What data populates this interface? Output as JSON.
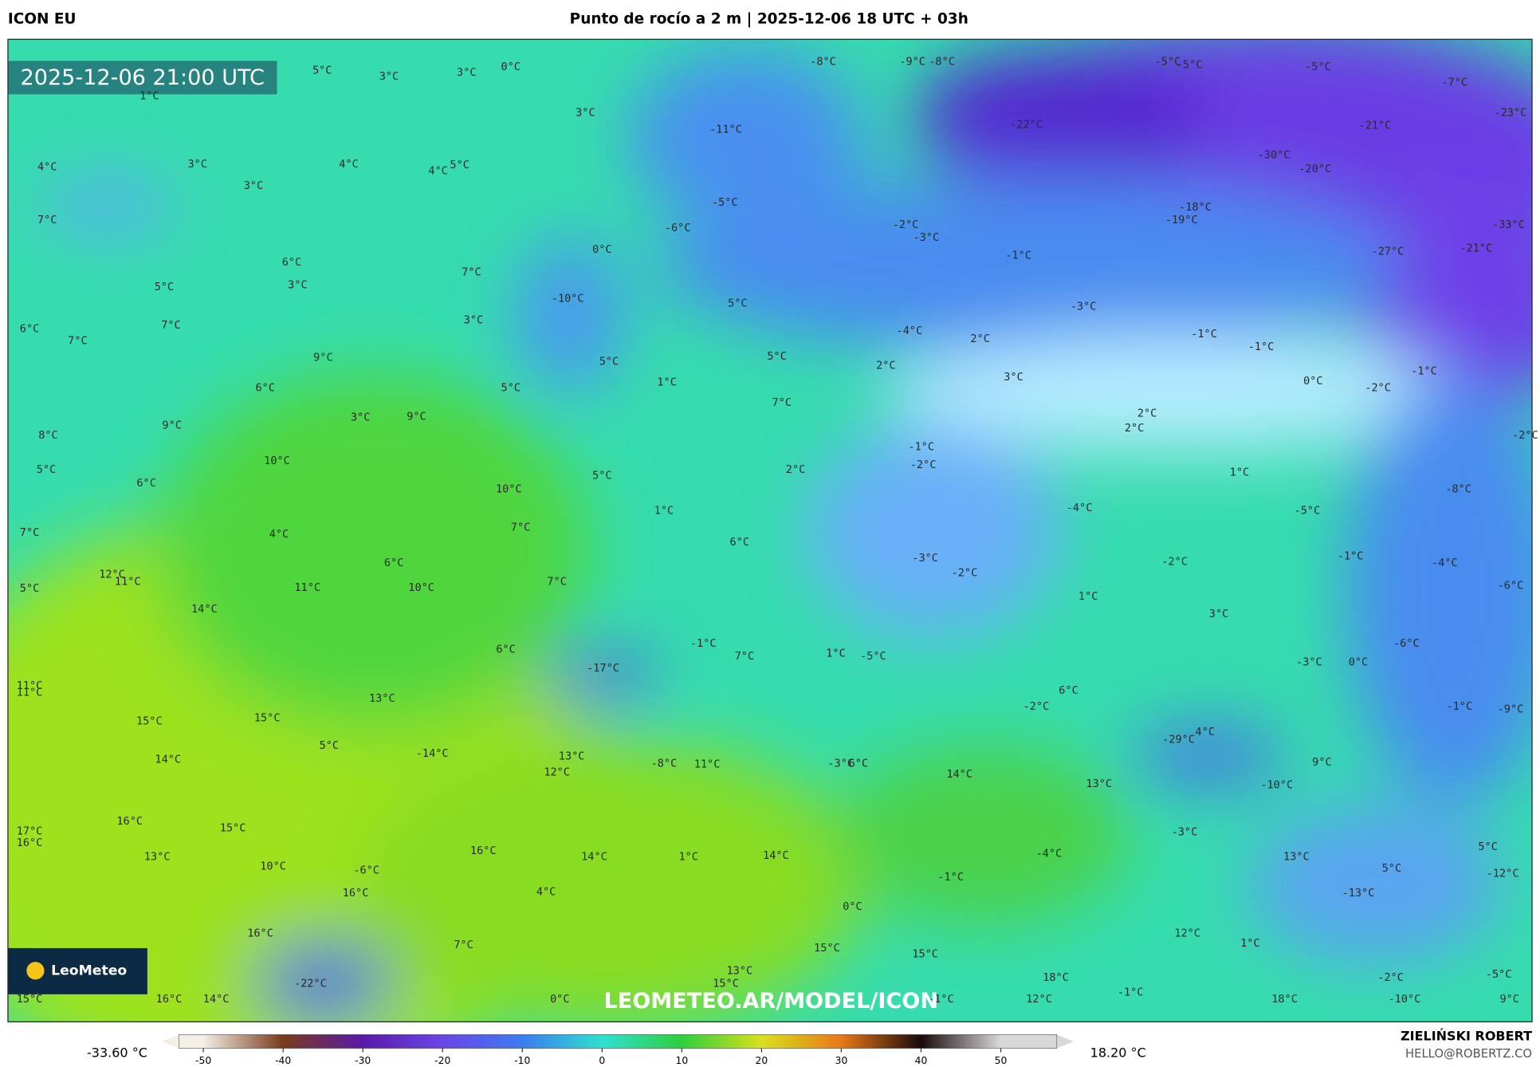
{
  "header": {
    "model": "ICON EU",
    "title": "Punto de rocío a 2 m | 2025-12-06 18 UTC + 03h"
  },
  "map": {
    "valid_time": "2025-12-06 21:00 UTC",
    "watermark": "LEOMETEO.AR/MODEL/ICON",
    "logo": "LeoMeteo",
    "labels": [
      "5°C",
      "3°C",
      "3°C",
      "0°C",
      "1°C",
      "3°C",
      "3°C",
      "4°C",
      "4°C",
      "5°C",
      "3°C",
      "4°C",
      "7°C",
      "6°C",
      "3°C",
      "7°C",
      "5°C",
      "7°C",
      "3°C",
      "6°C",
      "7°C",
      "9°C",
      "6°C",
      "5°C",
      "3°C",
      "9°C",
      "9°C",
      "8°C",
      "10°C",
      "5°C",
      "6°C",
      "10°C",
      "7°C",
      "4°C",
      "7°C",
      "6°C",
      "12°C",
      "11°C",
      "5°C",
      "11°C",
      "10°C",
      "7°C",
      "14°C",
      "6°C",
      "11°C",
      "11°C",
      "13°C",
      "15°C",
      "15°C",
      "5°C",
      "14°C",
      "-14°C",
      "13°C",
      "12°C",
      "16°C",
      "15°C",
      "17°C",
      "16°C",
      "13°C",
      "16°C",
      "10°C",
      "-6°C",
      "16°C",
      "14°C",
      "4°C",
      "16°C",
      "7°C",
      "-22°C",
      "15°C",
      "16°C",
      "14°C",
      "0°C",
      "-8°C",
      "-9°C",
      "-8°C",
      "-5°C",
      "-5°C",
      "-5°C",
      "-7°C",
      "-23°C",
      "-22°C",
      "-21°C",
      "-30°C",
      "-20°C",
      "-33°C",
      "-18°C",
      "-19°C",
      "-27°C",
      "-21°C",
      "-11°C",
      "-5°C",
      "-6°C",
      "-2°C",
      "-3°C",
      "-1°C",
      "0°C",
      "-10°C",
      "5°C",
      "-3°C",
      "-4°C",
      "2°C",
      "-1°C",
      "-1°C",
      "0°C",
      "-2°C",
      "-1°C",
      "5°C",
      "2°C",
      "3°C",
      "1°C",
      "5°C",
      "7°C",
      "2°C",
      "2°C",
      "-2°C",
      "-1°C",
      "-2°C",
      "2°C",
      "1°C",
      "5°C",
      "-8°C",
      "-4°C",
      "-5°C",
      "1°C",
      "6°C",
      "-3°C",
      "-2°C",
      "-2°C",
      "-1°C",
      "-4°C",
      "-6°C",
      "1°C",
      "3°C",
      "-1°C",
      "7°C",
      "1°C",
      "-5°C",
      "-6°C",
      "-3°C",
      "0°C",
      "-17°C",
      "6°C",
      "-2°C",
      "-1°C",
      "-9°C",
      "-29°C",
      "4°C",
      "-8°C",
      "11°C",
      "-3°C",
      "6°C",
      "14°C",
      "13°C",
      "9°C",
      "-10°C",
      "-3°C",
      "-4°C",
      "14°C",
      "1°C",
      "13°C",
      "5°C",
      "5°C",
      "-12°C",
      "-13°C",
      "-1°C",
      "0°C",
      "12°C",
      "1°C",
      "15°C",
      "15°C",
      "13°C",
      "15°C",
      "18°C",
      "-2°C",
      "-5°C",
      "12°C",
      "-1°C",
      "18°C",
      "-10°C",
      "9°C",
      "-1°C"
    ]
  },
  "legend": {
    "min_label": "-33.60 °C",
    "max_label": "18.20 °C",
    "ticks": [
      -50,
      -40,
      -30,
      -20,
      -10,
      0,
      10,
      20,
      30,
      40,
      50
    ],
    "colors": [
      "#f3efe4",
      "#7a3a1c",
      "#5a1aa8",
      "#6a46e8",
      "#3c7cf0",
      "#30e0d0",
      "#2ecf3c",
      "#d8e020",
      "#e87818",
      "#1a0a0a",
      "#d8d8d8"
    ]
  },
  "credits": {
    "author": "ZIELIŃSKI ROBERT",
    "contact": "HELLO@ROBERTZ.CO"
  }
}
